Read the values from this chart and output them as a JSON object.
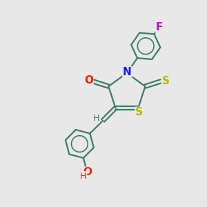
{
  "bg_color": "#e8e8e8",
  "bond_color": "#3d7a6a",
  "atom_colors": {
    "O": "#ee2200",
    "N": "#1a1aff",
    "S": "#b8b800",
    "F": "#cc00cc",
    "H": "#3d7a6a"
  },
  "figsize": [
    3.0,
    3.0
  ],
  "dpi": 100
}
